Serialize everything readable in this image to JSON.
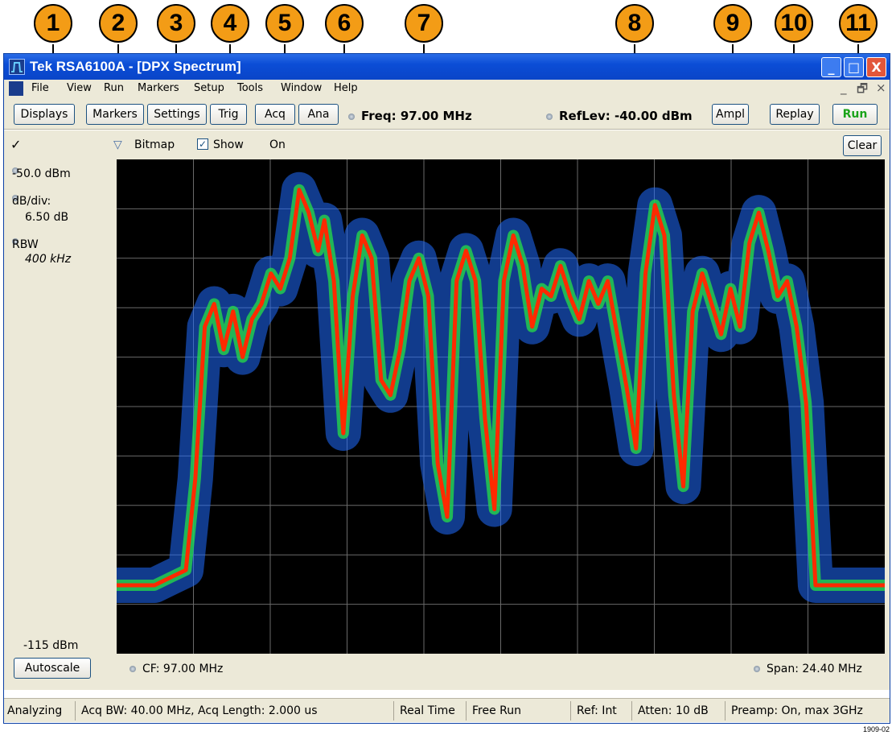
{
  "callouts": [
    "1",
    "2",
    "3",
    "4",
    "5",
    "6",
    "7",
    "8",
    "9",
    "10",
    "11"
  ],
  "window": {
    "title": "Tek RSA6100A - [DPX Spectrum]",
    "minimize": "_",
    "maximize": "□",
    "close": "X"
  },
  "menu": {
    "items": [
      "File",
      "View",
      "Run",
      "Markers",
      "Setup",
      "Tools",
      "Window",
      "Help"
    ],
    "mdi_min": "_",
    "mdi_restore": "🗗",
    "mdi_close": "×"
  },
  "toolbar": {
    "displays": "Displays",
    "markers": "Markers",
    "settings": "Settings",
    "trig": "Trig",
    "acq": "Acq",
    "ana": "Ana",
    "freq": "Freq: 97.00 MHz",
    "reflev": "RefLev: -40.00 dBm",
    "ampl": "Ampl",
    "replay": "Replay",
    "run": "Run"
  },
  "trace_bar": {
    "check": "✓",
    "trace_dropdown": "▽",
    "trace_name": "Bitmap",
    "show_label": "Show",
    "show_checked": "✓",
    "state": "On",
    "clear": "Clear"
  },
  "left_panel": {
    "top_level": "-50.0 dBm",
    "scale_label": "dB/div:",
    "scale_value": "6.50 dB",
    "rbw_label": "RBW",
    "rbw_value": "400 kHz",
    "bottom_level": "-115 dBm",
    "autoscale": "Autoscale"
  },
  "bottom_bar": {
    "cf": "CF: 97.00 MHz",
    "span": "Span: 24.40 MHz"
  },
  "status": {
    "state": "Analyzing",
    "acq": "Acq BW: 40.00 MHz, Acq Length: 2.000 us",
    "mode": "Real Time",
    "trigger": "Free Run",
    "ref": "Ref: Int",
    "atten": "Atten: 10 dB",
    "preamp": "Preamp: On, max 3GHz"
  },
  "figure_number": "1909-02",
  "chart_data": {
    "type": "line",
    "y_units": "dBm",
    "ylim": [
      -115,
      -50
    ],
    "xlim_mhz": [
      84.8,
      109.2
    ],
    "grid": true,
    "colors": {
      "peak": "#ff2a00",
      "mid": "#25d64a",
      "floor": "#1f6bff"
    },
    "x": [
      84.8,
      85.5,
      86.0,
      86.5,
      87.0,
      87.3,
      87.6,
      87.9,
      88.2,
      88.5,
      88.8,
      89.1,
      89.4,
      89.7,
      90.0,
      90.3,
      90.6,
      90.9,
      91.2,
      91.4,
      91.7,
      92.0,
      92.3,
      92.6,
      92.9,
      93.2,
      93.5,
      93.8,
      94.1,
      94.4,
      94.7,
      95.0,
      95.3,
      95.6,
      95.9,
      96.2,
      96.5,
      96.8,
      97.1,
      97.4,
      97.7,
      98.0,
      98.3,
      98.6,
      98.9,
      99.2,
      99.5,
      99.8,
      100.1,
      100.4,
      100.7,
      101.0,
      101.3,
      101.6,
      101.9,
      102.2,
      102.5,
      102.8,
      103.1,
      103.4,
      103.7,
      104.0,
      104.3,
      104.6,
      104.9,
      105.2,
      105.5,
      105.8,
      106.1,
      106.4,
      106.7,
      107.0,
      107.3,
      107.6,
      107.9,
      108.2,
      108.6,
      109.2
    ],
    "values": [
      -106,
      -106,
      -106,
      -105,
      -104,
      -92,
      -72,
      -69,
      -75,
      -70,
      -76,
      -71,
      -69,
      -65,
      -67,
      -63,
      -54,
      -57,
      -62,
      -58,
      -66,
      -86,
      -68,
      -60,
      -63,
      -79,
      -81,
      -75,
      -66,
      -63,
      -68,
      -90,
      -97,
      -66,
      -62,
      -66,
      -84,
      -96,
      -66,
      -60,
      -64,
      -72,
      -67,
      -68,
      -64,
      -68,
      -71,
      -66,
      -69,
      -66,
      -73,
      -80,
      -88,
      -65,
      -56,
      -60,
      -81,
      -93,
      -70,
      -65,
      -69,
      -73,
      -67,
      -72,
      -61,
      -57,
      -62,
      -68,
      -66,
      -72,
      -82,
      -106,
      -106,
      -106,
      -106,
      -106,
      -106,
      -106
    ]
  }
}
